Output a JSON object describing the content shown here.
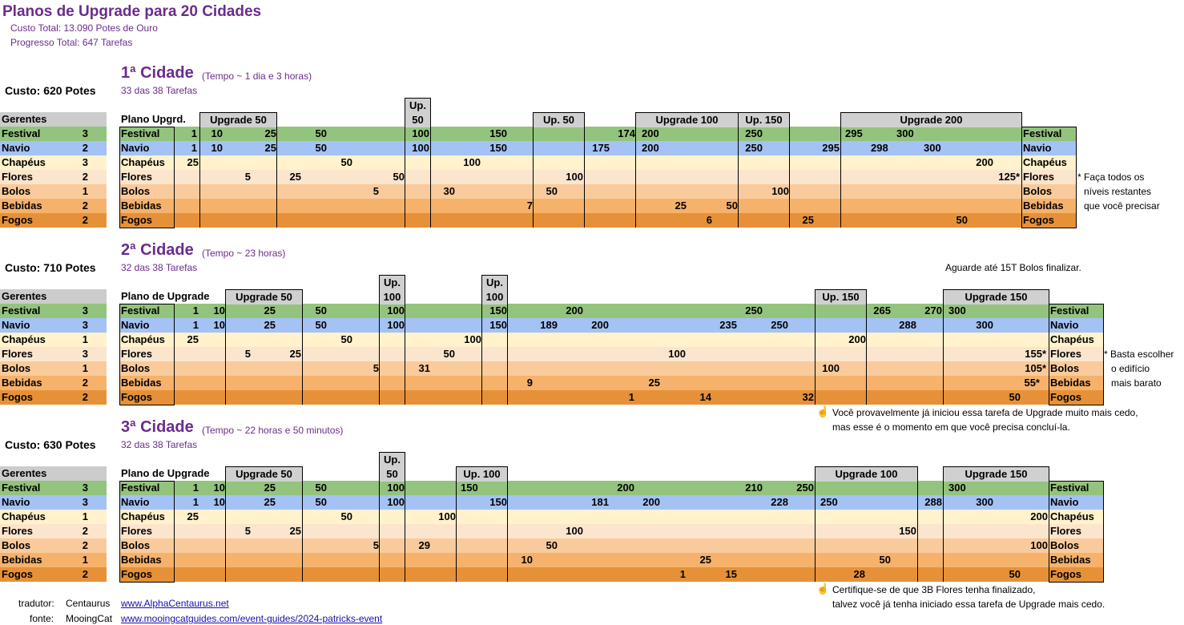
{
  "header": {
    "title": "Planos de Upgrade para 20 Cidades",
    "cost": "Custo Total:  13.090 Potes de Ouro",
    "progress": "Progresso Total:  647 Tarefas"
  },
  "labels": {
    "gerentes": "Gerentes",
    "festival": "Festival",
    "navio": "Navio",
    "chapeus": "Chapéus",
    "flores": "Flores",
    "bolos": "Bolos",
    "bebidas": "Bebidas",
    "fogos": "Fogos"
  },
  "city1": {
    "title": "1ª Cidade",
    "time": "(Tempo ~ 1 dia e 3 horas)",
    "tasks": "33 das 38 Tarefas",
    "cost": "Custo: 620 Potes",
    "plan": "Plano Upgrd.",
    "managers": [
      "3",
      "2",
      "3",
      "2",
      "1",
      "2",
      "2"
    ],
    "boxes": [
      "Upgrade 50",
      "Up.\n50",
      "Up. 50",
      "Upgrade 100",
      "Up. 150",
      "Upgrade 200"
    ],
    "note": [
      "* Faça todos os",
      "níveis restantes",
      "que você precisar"
    ],
    "rows": [
      [
        "1",
        "10",
        "25",
        "50",
        "100",
        "150",
        "174",
        "200",
        "250",
        "295",
        "300"
      ],
      [
        "1",
        "10",
        "25",
        "50",
        "100",
        "150",
        "175",
        "200",
        "250",
        "295",
        "298",
        "300"
      ],
      [
        "25",
        "50",
        "100",
        "200"
      ],
      [
        "5",
        "25",
        "50",
        "100",
        "125*"
      ],
      [
        "5",
        "30",
        "50",
        "100"
      ],
      [
        "7",
        "25",
        "50"
      ],
      [
        "6",
        "25",
        "50"
      ]
    ]
  },
  "city2": {
    "title": "2ª Cidade",
    "time": "(Tempo ~ 23 horas)",
    "tasks": "32 das 38 Tarefas",
    "cost": "Custo: 710 Potes",
    "plan": "Plano de Upgrade",
    "managers": [
      "3",
      "3",
      "1",
      "3",
      "1",
      "2",
      "2"
    ],
    "boxes": [
      "Upgrade 50",
      "Up.\n100",
      "Up.\n100",
      "Up. 150",
      "Upgrade 150"
    ],
    "wait": "Aguarde até 15T Bolos finalizar.",
    "note": [
      "* Basta escolher",
      "o edifício",
      "mais barato"
    ],
    "hint": [
      "Você provavelmente já iniciou essa tarefa de Upgrade muito mais cedo,",
      "mas esse é o momento em que você precisa concluí-la."
    ],
    "rows": [
      [
        "1",
        "10",
        "25",
        "50",
        "100",
        "150",
        "200",
        "250",
        "265",
        "270",
        "300"
      ],
      [
        "1",
        "10",
        "25",
        "50",
        "100",
        "150",
        "189",
        "200",
        "235",
        "250",
        "288",
        "300"
      ],
      [
        "25",
        "50",
        "100",
        "200"
      ],
      [
        "5",
        "25",
        "50",
        "100",
        "155*"
      ],
      [
        "5",
        "31",
        "100",
        "105*"
      ],
      [
        "9",
        "25",
        "55*"
      ],
      [
        "1",
        "14",
        "32",
        "50"
      ]
    ]
  },
  "city3": {
    "title": "3ª Cidade",
    "time": "(Tempo ~ 22 horas e 50 minutos)",
    "tasks": "32 das 38 Tarefas",
    "cost": "Custo: 630 Potes",
    "plan": "Plano de Upgrade",
    "managers": [
      "3",
      "3",
      "1",
      "2",
      "2",
      "1",
      "2"
    ],
    "boxes": [
      "Upgrade 50",
      "Up.\n50",
      "Up. 100",
      "Upgrade 100",
      "Upgrade 150"
    ],
    "hint": [
      "Certifique-se de que 3B Flores tenha finalizado,",
      "talvez você já tenha iniciado essa tarefa de Upgrade mais cedo."
    ],
    "rows": [
      [
        "1",
        "10",
        "25",
        "50",
        "100",
        "150",
        "200",
        "210",
        "250",
        "300"
      ],
      [
        "1",
        "10",
        "25",
        "50",
        "100",
        "150",
        "181",
        "200",
        "228",
        "250",
        "288",
        "300"
      ],
      [
        "25",
        "50",
        "100",
        "200"
      ],
      [
        "5",
        "25",
        "100",
        "150"
      ],
      [
        "5",
        "29",
        "50",
        "100"
      ],
      [
        "10",
        "25",
        "50"
      ],
      [
        "1",
        "15",
        "28",
        "50"
      ]
    ]
  },
  "footer": {
    "translator_label": "tradutor:",
    "translator_name": "Centaurus",
    "translator_link": "www.AlphaCentaurus.net",
    "source_label": "fonte:",
    "source_name": "MooingCat",
    "source_link": "www.mooingcatguides.com/event-guides/2024-patricks-event"
  },
  "colors": {
    "festival": "#93c47d",
    "navio": "#a4c2f4",
    "chapeus": "#fff2cc",
    "flores": "#fce5cd",
    "bolos": "#f9cb9c",
    "bebidas": "#f6b26b",
    "fogos": "#e69138",
    "header": "#cccccc",
    "accent": "#6a2c8c"
  },
  "icons": {
    "hint": "pointing-hand-icon"
  }
}
